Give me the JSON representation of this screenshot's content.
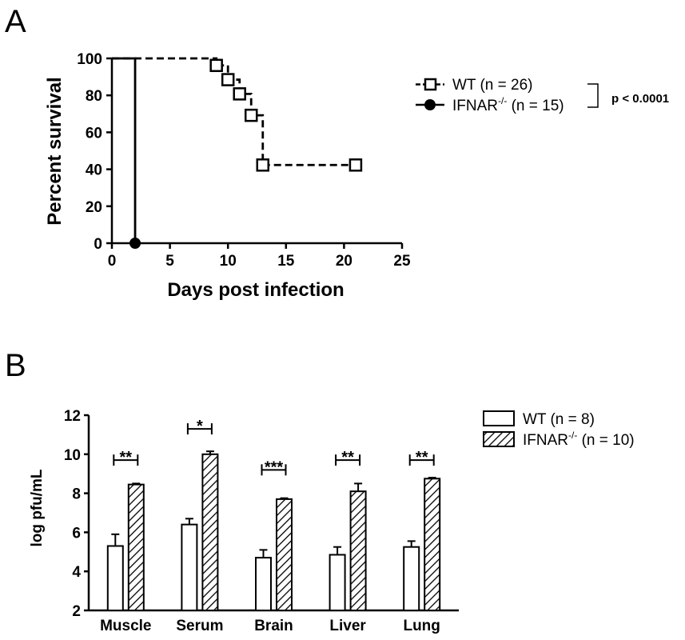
{
  "chart_data": [
    {
      "panel_label": "A",
      "type": "line",
      "style": "kaplan-meier step",
      "xlabel": "Days post infection",
      "ylabel": "Percent survival",
      "xlim": [
        0,
        25
      ],
      "ylim": [
        0,
        100
      ],
      "xticks": [
        "0",
        "5",
        "10",
        "15",
        "20",
        "25"
      ],
      "yticks": [
        "0",
        "20",
        "40",
        "60",
        "80",
        "100"
      ],
      "grid": false,
      "legend_position": "right",
      "series": [
        {
          "name": "WT (n = 26)",
          "line_style": "dashed",
          "marker": "open-square",
          "steps": [
            [
              0,
              100
            ],
            [
              9,
              96.2
            ],
            [
              10,
              88.5
            ],
            [
              11,
              80.8
            ],
            [
              12,
              69.2
            ],
            [
              13,
              42.3
            ],
            [
              21,
              42.3
            ]
          ],
          "markers": [
            [
              9,
              96.2
            ],
            [
              10,
              88.5
            ],
            [
              11,
              80.8
            ],
            [
              12,
              69.2
            ],
            [
              13,
              42.3
            ],
            [
              21,
              42.3
            ]
          ]
        },
        {
          "name": "IFNAR",
          "name_superscript": "-/-",
          "name_suffix": " (n = 15)",
          "line_style": "solid",
          "marker": "filled-circle",
          "steps": [
            [
              0,
              100
            ],
            [
              2,
              0
            ]
          ],
          "markers": [
            [
              2,
              0
            ]
          ]
        }
      ],
      "annotation": "p < 0.0001"
    },
    {
      "panel_label": "B",
      "type": "bar",
      "categories": [
        "Muscle",
        "Serum",
        "Brain",
        "Liver",
        "Lung"
      ],
      "ylabel": "log pfu/mL",
      "ylim": [
        2,
        12
      ],
      "yticks": [
        "2",
        "4",
        "6",
        "8",
        "10",
        "12"
      ],
      "grid": false,
      "legend_position": "top-right",
      "series": [
        {
          "name": "WT (n = 8)",
          "fill": "open",
          "values": [
            5.3,
            6.4,
            4.7,
            4.85,
            5.25
          ],
          "errors": [
            0.6,
            0.3,
            0.4,
            0.4,
            0.3
          ]
        },
        {
          "name": "IFNAR",
          "name_superscript": "-/-",
          "name_suffix": " (n = 10)",
          "fill": "hatched",
          "values": [
            8.45,
            10.0,
            7.7,
            8.1,
            8.75
          ],
          "errors": [
            0.05,
            0.15,
            0.05,
            0.4,
            0.05
          ]
        }
      ],
      "significance": [
        "**",
        "*",
        "***",
        "**",
        "**"
      ],
      "significance_y": [
        9.7,
        11.3,
        9.2,
        9.7,
        9.7
      ]
    }
  ]
}
